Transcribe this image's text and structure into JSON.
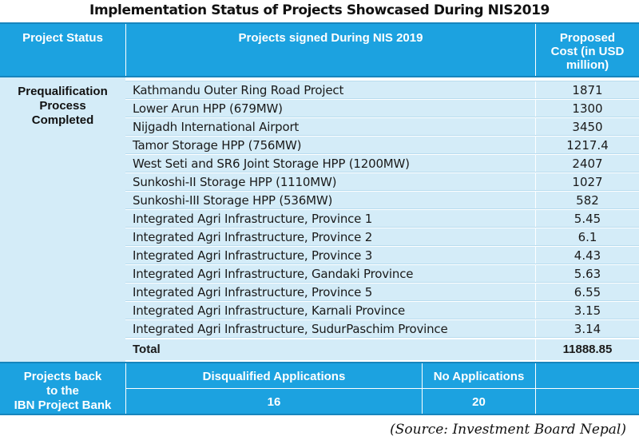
{
  "title": "Implementation Status of Projects Showcased During NIS2019",
  "header": {
    "status": "Project Status",
    "projects": "Projects signed During NIS 2019",
    "cost_line1": "Proposed",
    "cost_line2": "Cost (in USD",
    "cost_line3": "million)"
  },
  "prequal": {
    "line1": "Prequalification",
    "line2": "Process",
    "line3": "Completed"
  },
  "projects": [
    {
      "name": "Kathmandu Outer Ring Road Project",
      "cost": "1871"
    },
    {
      "name": "Lower Arun HPP (679MW)",
      "cost": "1300"
    },
    {
      "name": "Nijgadh International Airport",
      "cost": "3450"
    },
    {
      "name": "Tamor Storage HPP (756MW)",
      "cost": "1217.4"
    },
    {
      "name": "West Seti and SR6 Joint Storage HPP (1200MW)",
      "cost": "2407"
    },
    {
      "name": "Sunkoshi-II Storage HPP (1110MW)",
      "cost": "1027"
    },
    {
      "name": "Sunkoshi-III Storage HPP (536MW)",
      "cost": "582"
    },
    {
      "name": "Integrated Agri Infrastructure, Province 1",
      "cost": "5.45"
    },
    {
      "name": "Integrated Agri Infrastructure, Province 2",
      "cost": "6.1"
    },
    {
      "name": "Integrated Agri Infrastructure, Province 3",
      "cost": "4.43"
    },
    {
      "name": "Integrated Agri Infrastructure, Gandaki Province",
      "cost": "5.63"
    },
    {
      "name": "Integrated Agri Infrastructure, Province 5",
      "cost": "6.55"
    },
    {
      "name": "Integrated Agri Infrastructure, Karnali Province",
      "cost": "3.15"
    },
    {
      "name": "Integrated Agri Infrastructure, SudurPaschim Province",
      "cost": "3.14"
    }
  ],
  "total": {
    "label": "Total",
    "value": "11888.85"
  },
  "back": {
    "line1": "Projects back",
    "line2": "to the",
    "line3": "IBN Project Bank",
    "disq_label": "Disqualified Applications",
    "disq_value": "16",
    "noapp_label": "No Applications",
    "noapp_value": "20"
  },
  "source": "(Source: Investment Board Nepal)",
  "colors": {
    "header_blue": "#1ca2e0",
    "row_light_blue": "#d4ecf8"
  }
}
